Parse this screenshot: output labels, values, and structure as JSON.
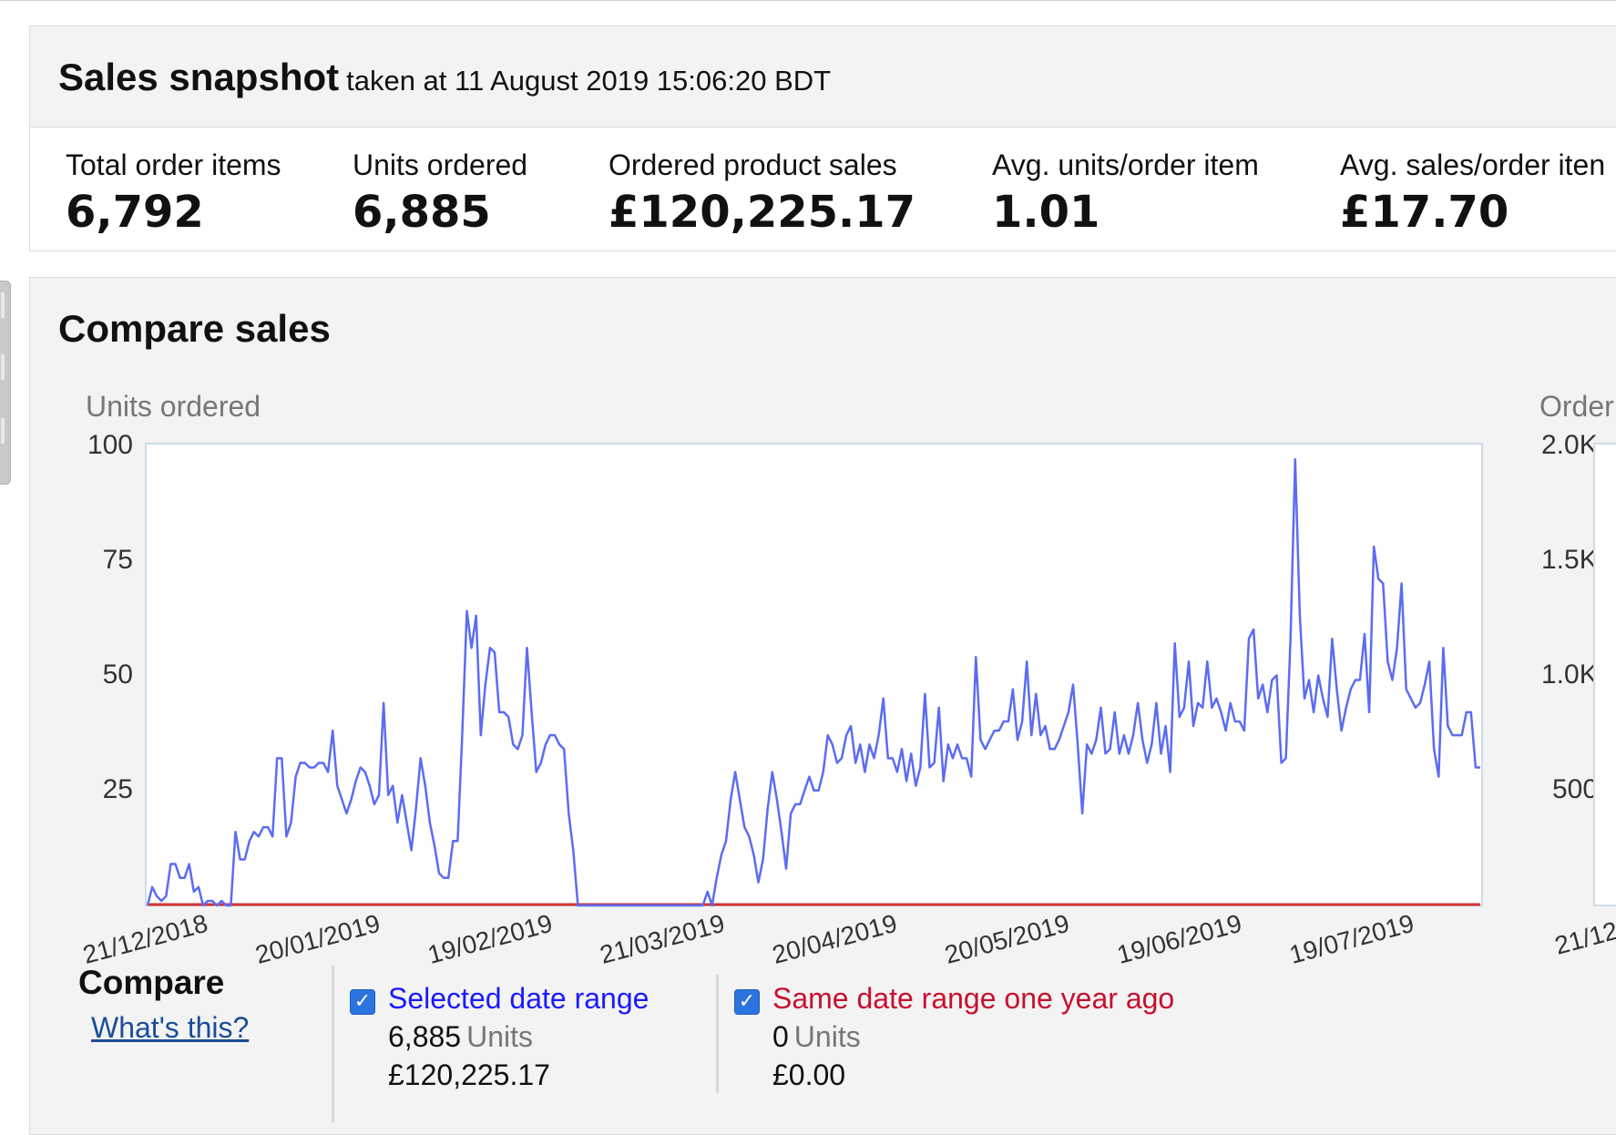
{
  "snapshot": {
    "title": "Sales snapshot",
    "taken_at": "taken at 11 August 2019 15:06:20 BDT",
    "metrics": [
      {
        "label": "Total order items",
        "value": "6,792"
      },
      {
        "label": "Units ordered",
        "value": "6,885"
      },
      {
        "label": "Ordered product sales",
        "value": "£120,225.17"
      },
      {
        "label": "Avg. units/order item",
        "value": "1.01"
      },
      {
        "label": "Avg. sales/order iten",
        "value": "£17.70"
      }
    ]
  },
  "compare": {
    "title": "Compare sales",
    "left_axis_title": "Units ordered",
    "right_axis_title": "Order",
    "right_ticks": [
      "2.0K",
      "1.5K",
      "1.0K",
      "500"
    ],
    "right_x_first": "21/12",
    "legend_title": "Compare",
    "whats_this": "What's this?",
    "selected": {
      "label": "Selected date range",
      "units_value": "6,885",
      "units_label": "Units",
      "sales": "£120,225.17",
      "color": "#1a1aff",
      "checked": true
    },
    "previous": {
      "label": "Same date range one year ago",
      "units_value": "0",
      "units_label": "Units",
      "sales": "£0.00",
      "color": "#c8102e",
      "checked": true
    }
  },
  "chart_data": {
    "type": "line",
    "ylabel": "Units ordered",
    "ylim": [
      0,
      100
    ],
    "yticks": [
      25,
      50,
      75,
      100
    ],
    "xtick_labels": [
      "21/12/2018",
      "20/01/2019",
      "19/02/2019",
      "21/03/2019",
      "20/04/2019",
      "20/05/2019",
      "19/06/2019",
      "19/07/2019"
    ],
    "x_start": "2018-12-21",
    "x_end": "2019-08-10",
    "series": [
      {
        "name": "Selected date range",
        "color": "#5b6cf2",
        "values": [
          0,
          4,
          2,
          1,
          2,
          9,
          9,
          6,
          6,
          9,
          3,
          4,
          0,
          1,
          1,
          0,
          1,
          0,
          0,
          16,
          10,
          10,
          14,
          16,
          15,
          17,
          17,
          15,
          32,
          32,
          15,
          18,
          28,
          31,
          31,
          30,
          30,
          31,
          31,
          29,
          38,
          26,
          23,
          20,
          23,
          27,
          30,
          29,
          26,
          22,
          24,
          44,
          24,
          26,
          18,
          24,
          18,
          12,
          21,
          32,
          26,
          18,
          13,
          7,
          6,
          6,
          14,
          14,
          37,
          64,
          56,
          63,
          37,
          48,
          56,
          55,
          42,
          42,
          41,
          35,
          34,
          37,
          56,
          42,
          29,
          31,
          35,
          37,
          37,
          35,
          34,
          20,
          12,
          0,
          0,
          0,
          0,
          0,
          0,
          0,
          0,
          0,
          0,
          0,
          0,
          0,
          0,
          0,
          0,
          0,
          0,
          0,
          0,
          0,
          0,
          0,
          0,
          0,
          0,
          0,
          0,
          3,
          0,
          6,
          11,
          14,
          23,
          29,
          23,
          17,
          15,
          11,
          5,
          10,
          21,
          29,
          23,
          16,
          8,
          20,
          22,
          22,
          25,
          28,
          25,
          25,
          29,
          37,
          35,
          31,
          32,
          37,
          39,
          31,
          35,
          29,
          35,
          32,
          37,
          45,
          32,
          32,
          29,
          34,
          27,
          33,
          26,
          30,
          46,
          30,
          31,
          43,
          27,
          35,
          32,
          35,
          32,
          32,
          28,
          54,
          36,
          34,
          36,
          38,
          38,
          40,
          40,
          47,
          36,
          40,
          53,
          37,
          46,
          37,
          39,
          34,
          34,
          36,
          39,
          42,
          48,
          35,
          20,
          35,
          33,
          36,
          43,
          33,
          34,
          42,
          33,
          37,
          33,
          37,
          44,
          36,
          31,
          35,
          44,
          33,
          39,
          29,
          57,
          41,
          43,
          53,
          39,
          44,
          43,
          53,
          43,
          45,
          42,
          38,
          44,
          40,
          40,
          38,
          58,
          60,
          45,
          48,
          42,
          49,
          50,
          31,
          32,
          58,
          97,
          63,
          45,
          49,
          42,
          50,
          45,
          41,
          58,
          47,
          38,
          43,
          47,
          49,
          49,
          59,
          42,
          78,
          71,
          70,
          53,
          49,
          56,
          70,
          47,
          45,
          43,
          44,
          48,
          53,
          34,
          28,
          56,
          39,
          37,
          37,
          37,
          42,
          42,
          30,
          30
        ]
      },
      {
        "name": "Same date range one year ago",
        "color": "#d33232",
        "values": [
          0
        ]
      }
    ]
  }
}
